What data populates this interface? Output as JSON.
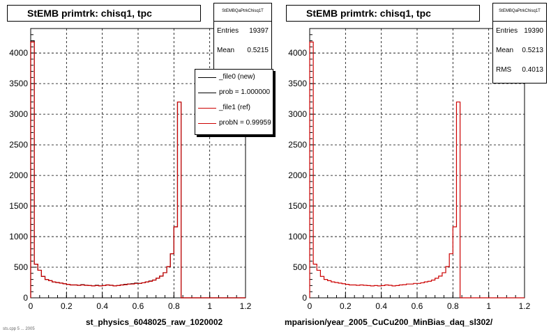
{
  "panels": [
    {
      "title": "StEMB primtrk: chisq1, tpc",
      "stats_name": "StEMBQaPtrkChisq1T",
      "stats": [
        {
          "label": "Entries",
          "value": "19397"
        },
        {
          "label": "Mean",
          "value": "0.5215"
        }
      ],
      "legend": [
        {
          "label": "_file0 (new)",
          "color": "#000000"
        },
        {
          "label": "prob = 1.000000",
          "color": "#000000"
        },
        {
          "label": "_file1 (ref)",
          "color": "#cc0000"
        },
        {
          "label": "probN = 0.99959",
          "color": "#cc0000"
        }
      ],
      "xlabel": "st_physics_6048025_raw_1020002"
    },
    {
      "title": "StEMB primtrk: chisq1, tpc",
      "stats_name": "StEMBQaPtrkChisq1T",
      "stats": [
        {
          "label": "Entries",
          "value": "19390"
        },
        {
          "label": "Mean",
          "value": "0.5213"
        },
        {
          "label": "RMS",
          "value": "0.4013"
        }
      ],
      "legend": [],
      "xlabel": "mparision/year_2005_CuCu200_MinBias_daq_sl302/"
    }
  ],
  "footer_text": "sts.cpp 5 ... 2005",
  "chart_data": [
    {
      "type": "histogram",
      "title": "StEMB primtrk: chisq1, tpc",
      "xlim": [
        0,
        1.2
      ],
      "ylim": [
        0,
        4400
      ],
      "x_ticks": [
        "0",
        "0.2",
        "0.4",
        "0.6",
        "0.8",
        "1",
        "1.2"
      ],
      "y_ticks": [
        "0",
        "500",
        "1000",
        "1500",
        "2000",
        "2500",
        "3000",
        "3500",
        "4000"
      ],
      "grid": true,
      "bin_width": 0.02,
      "series": [
        {
          "name": "_file0 (new)",
          "color": "#000000",
          "values": [
            4200,
            550,
            450,
            350,
            300,
            280,
            260,
            250,
            240,
            230,
            220,
            210,
            210,
            205,
            215,
            205,
            200,
            195,
            205,
            195,
            200,
            210,
            205,
            195,
            200,
            210,
            220,
            225,
            230,
            240,
            235,
            245,
            260,
            275,
            290,
            320,
            355,
            410,
            510,
            720,
            1160,
            3200,
            0,
            0,
            0,
            0,
            0,
            0,
            0,
            0,
            0,
            0,
            0,
            0,
            0,
            0,
            0,
            0,
            0,
            0
          ]
        },
        {
          "name": "_file1 (ref)",
          "color": "#cc0000",
          "values": [
            4180,
            550,
            450,
            350,
            300,
            280,
            260,
            250,
            240,
            230,
            220,
            210,
            210,
            205,
            210,
            205,
            200,
            195,
            200,
            195,
            200,
            210,
            205,
            195,
            200,
            210,
            215,
            225,
            225,
            235,
            235,
            245,
            260,
            270,
            290,
            320,
            355,
            410,
            510,
            720,
            1160,
            3200,
            0,
            0,
            0,
            0,
            0,
            0,
            0,
            0,
            0,
            0,
            0,
            0,
            0,
            0,
            0,
            0,
            0,
            0
          ]
        }
      ]
    },
    {
      "type": "histogram",
      "title": "StEMB primtrk: chisq1, tpc",
      "xlim": [
        0,
        1.2
      ],
      "ylim": [
        0,
        4400
      ],
      "x_ticks": [
        "0",
        "0.2",
        "0.4",
        "0.6",
        "0.8",
        "1",
        "1.2"
      ],
      "y_ticks": [
        "0",
        "500",
        "1000",
        "1500",
        "2000",
        "2500",
        "3000",
        "3500",
        "4000"
      ],
      "grid": true,
      "bin_width": 0.02,
      "series": [
        {
          "name": "",
          "color": "#cc0000",
          "values": [
            4180,
            550,
            450,
            350,
            300,
            280,
            260,
            250,
            240,
            230,
            220,
            210,
            210,
            205,
            210,
            205,
            200,
            195,
            200,
            195,
            200,
            210,
            205,
            195,
            200,
            210,
            215,
            225,
            225,
            235,
            235,
            245,
            260,
            270,
            290,
            320,
            355,
            410,
            510,
            720,
            1160,
            3200,
            0,
            0,
            0,
            0,
            0,
            0,
            0,
            0,
            0,
            0,
            0,
            0,
            0,
            0,
            0,
            0,
            0,
            0
          ]
        }
      ]
    }
  ]
}
